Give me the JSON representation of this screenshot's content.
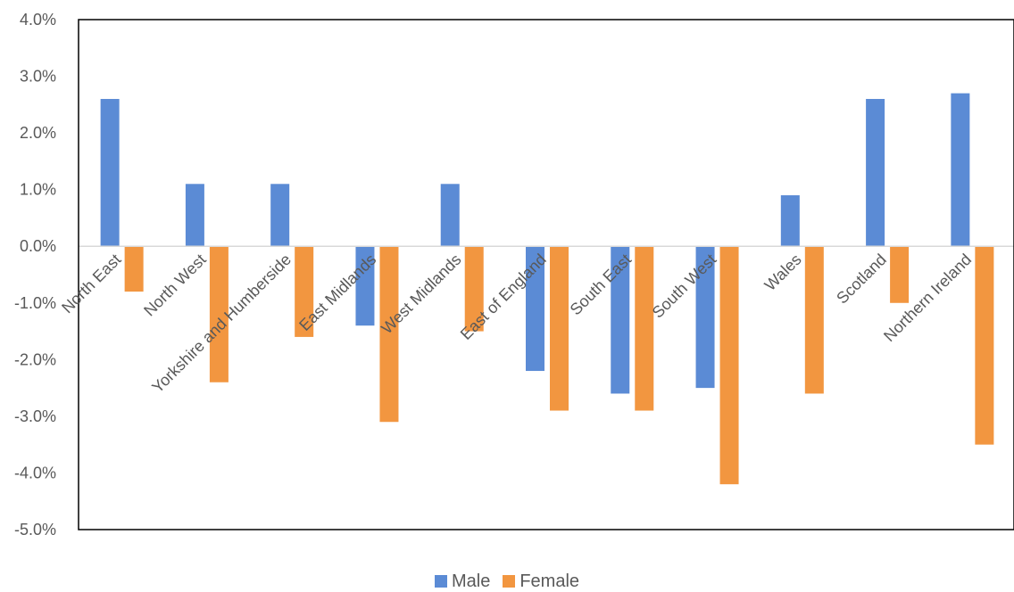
{
  "chart_data": {
    "type": "bar",
    "categories": [
      "North East",
      "North West",
      "Yorkshire and Humberside",
      "East Midlands",
      "West Midlands",
      "East of England",
      "South East",
      "South West",
      "Wales",
      "Scotland",
      "Northern Ireland"
    ],
    "series": [
      {
        "name": "Male",
        "color": "#5B8BD5",
        "values": [
          2.6,
          1.1,
          1.1,
          -1.4,
          1.1,
          -2.2,
          -2.6,
          -2.5,
          0.9,
          2.6,
          2.7
        ]
      },
      {
        "name": "Female",
        "color": "#F29640",
        "values": [
          -0.8,
          -2.4,
          -1.6,
          -3.1,
          -1.5,
          -2.9,
          -2.9,
          -4.2,
          -2.6,
          -1.0,
          -3.5
        ]
      }
    ],
    "y_ticks": [
      "4.0%",
      "3.0%",
      "2.0%",
      "1.0%",
      "0.0%",
      "-1.0%",
      "-2.0%",
      "-3.0%",
      "-4.0%",
      "-5.0%"
    ],
    "ylim": [
      -5,
      4
    ],
    "grid": false,
    "legend_position": "bottom"
  }
}
